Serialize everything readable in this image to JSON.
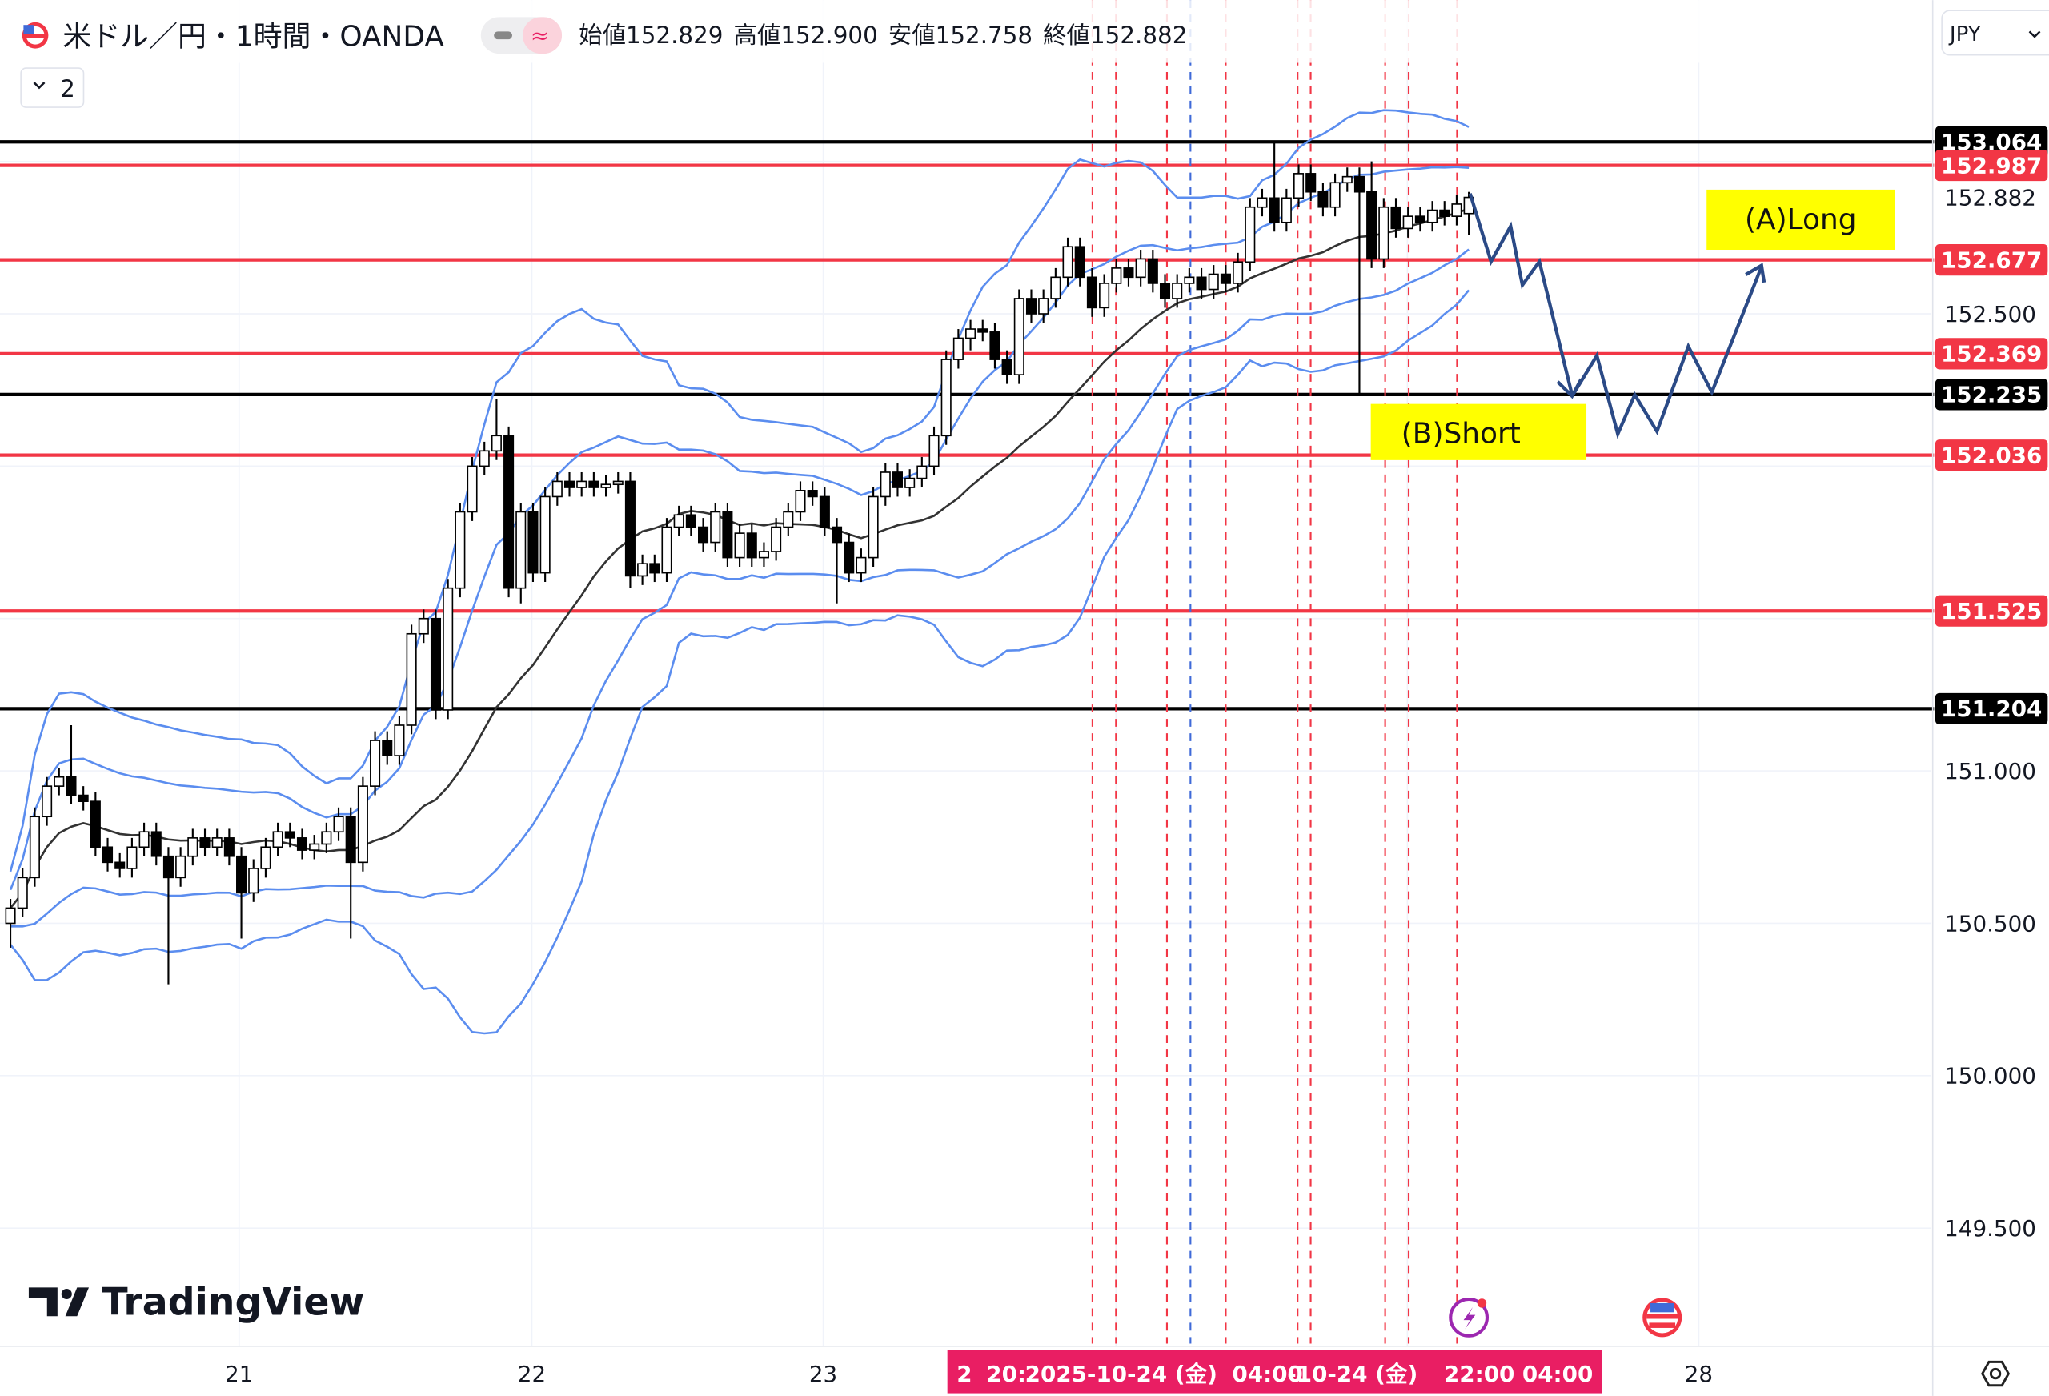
{
  "header": {
    "symbol_title": "米ドル／円・1時間・OANDA",
    "ohlc": {
      "open_label": "始値",
      "open": "152.829",
      "high_label": "高値",
      "high": "152.900",
      "low_label": "安値",
      "low": "152.758",
      "close_label": "終値",
      "close": "152.882"
    },
    "collapse_button": "2",
    "currency": "JPY"
  },
  "watermark": "TradingView",
  "colors": {
    "up": "#ffffff",
    "down": "#000000",
    "bb": "#5b8def",
    "ma": "#333333",
    "red_line": "#f23645",
    "black_line": "#000000",
    "arrow": "#2b4a86",
    "label_box": "#ffff00",
    "time_highlight": "#e91e63"
  },
  "chart_data": {
    "type": "candlestick",
    "symbol": "USD/JPY",
    "interval": "1時間",
    "x_tick_labels": [
      "21",
      "22",
      "23",
      "28"
    ],
    "y_tick_labels": [
      "152.882",
      "152.500",
      "151.000",
      "150.500",
      "150.000",
      "149.500"
    ],
    "ylim": [
      149.3,
      153.35
    ],
    "closes": [
      150.55,
      150.65,
      150.85,
      150.95,
      150.98,
      150.92,
      150.9,
      150.75,
      150.7,
      150.68,
      150.75,
      150.8,
      150.72,
      150.65,
      150.72,
      150.78,
      150.75,
      150.78,
      150.72,
      150.6,
      150.68,
      150.75,
      150.8,
      150.78,
      150.74,
      150.76,
      150.8,
      150.85,
      150.7,
      150.95,
      151.1,
      151.05,
      151.15,
      151.45,
      151.5,
      151.2,
      151.6,
      151.85,
      152.0,
      152.05,
      152.1,
      151.6,
      151.85,
      151.65,
      151.9,
      151.95,
      151.93,
      151.95,
      151.93,
      151.94,
      151.95,
      151.64,
      151.68,
      151.65,
      151.8,
      151.84,
      151.8,
      151.75,
      151.85,
      151.7,
      151.78,
      151.7,
      151.72,
      151.8,
      151.85,
      151.92,
      151.9,
      151.8,
      151.75,
      151.65,
      151.7,
      151.9,
      151.98,
      151.93,
      151.96,
      152.0,
      152.1,
      152.35,
      152.42,
      152.45,
      152.44,
      152.35,
      152.3,
      152.55,
      152.5,
      152.55,
      152.62,
      152.72,
      152.62,
      152.52,
      152.6,
      152.65,
      152.62,
      152.68,
      152.6,
      152.55,
      152.6,
      152.62,
      152.58,
      152.63,
      152.6,
      152.67,
      152.85,
      152.88,
      152.8,
      152.88,
      152.96,
      152.9,
      152.85,
      152.93,
      152.95,
      152.9,
      152.68,
      152.85,
      152.78,
      152.82,
      152.8,
      152.84,
      152.82,
      152.86,
      152.882
    ],
    "wick_extremes": [
      {
        "index": 0,
        "low": 150.42
      },
      {
        "index": 5,
        "high": 151.15
      },
      {
        "index": 13,
        "low": 150.3
      },
      {
        "index": 19,
        "low": 150.45
      },
      {
        "index": 28,
        "low": 150.45
      },
      {
        "index": 40,
        "high": 152.22
      },
      {
        "index": 42,
        "low": 151.55
      },
      {
        "index": 51,
        "low": 151.6
      },
      {
        "index": 68,
        "low": 151.55
      },
      {
        "index": 79,
        "low": 152.38
      },
      {
        "index": 104,
        "high": 153.06
      },
      {
        "index": 111,
        "low": 152.235
      },
      {
        "index": 112,
        "high": 153.0
      },
      {
        "index": 120,
        "open": 152.829,
        "high": 152.9,
        "low": 152.758
      }
    ],
    "horizontal_lines": [
      {
        "price": 153.064,
        "label": "153.064",
        "color": "#000000"
      },
      {
        "price": 152.987,
        "label": "152.987",
        "color": "#f23645"
      },
      {
        "price": 152.677,
        "label": "152.677",
        "color": "#f23645"
      },
      {
        "price": 152.369,
        "label": "152.369",
        "color": "#f23645"
      },
      {
        "price": 152.235,
        "label": "152.235",
        "color": "#000000"
      },
      {
        "price": 152.036,
        "label": "152.036",
        "color": "#f23645"
      },
      {
        "price": 151.525,
        "label": "151.525",
        "color": "#f23645"
      },
      {
        "price": 151.204,
        "label": "151.204",
        "color": "#000000"
      }
    ],
    "annotations": [
      {
        "text": "(A)Long"
      },
      {
        "text": "(B)Short"
      }
    ],
    "time_axis_highlight": [
      "2",
      "20:",
      "2025-10-24 (金)",
      "04:00",
      "-10-24 (金)",
      "22:00",
      "04:00"
    ]
  }
}
